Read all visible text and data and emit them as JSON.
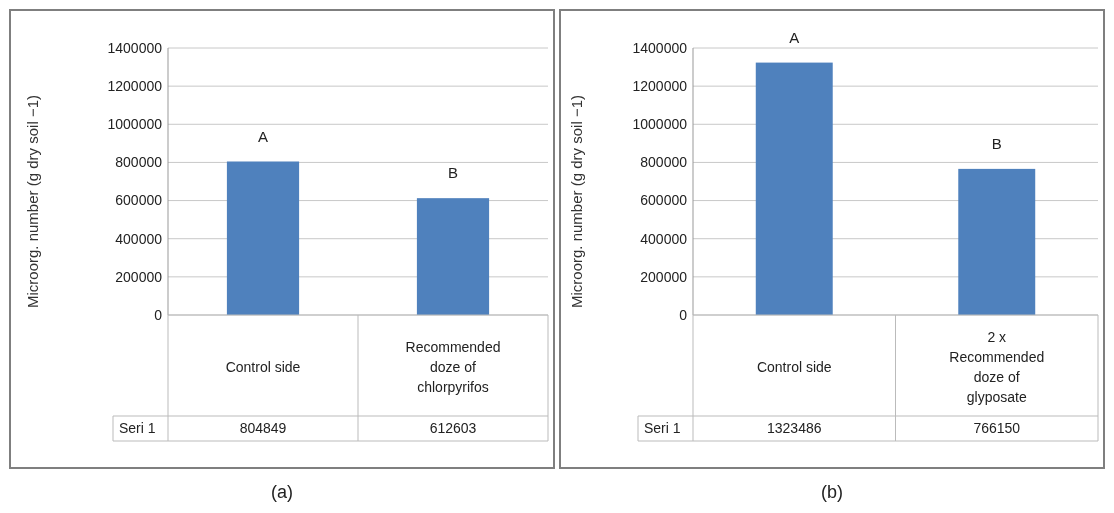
{
  "chart_data": [
    {
      "type": "bar",
      "ylabel": "Microorg. number (g dry soil −1)",
      "categories": [
        "Control side",
        "Recommended doze of chlorpyrifos"
      ],
      "series": [
        {
          "name": "Seri 1",
          "color": "#4f81bd",
          "values": [
            804849,
            612603
          ]
        }
      ],
      "ylim": [
        0,
        1400000
      ],
      "yticks": [
        0,
        200000,
        400000,
        600000,
        800000,
        1000000,
        1200000,
        1400000
      ],
      "grid": "y",
      "data_labels": true,
      "annotations": [
        {
          "text": "A",
          "x": "Control side",
          "y": 804849
        },
        {
          "text": "B",
          "x": "Recommended doze of chlorpyrifos",
          "y": 612603
        },
        "(a)"
      ]
    },
    {
      "type": "bar",
      "ylabel": "Microorg. number (g dry soil −1)",
      "categories": [
        "Control side",
        "2 x Recommended doze of glyposate"
      ],
      "series": [
        {
          "name": "Seri 1",
          "color": "#4f81bd",
          "values": [
            1323486,
            766150
          ]
        }
      ],
      "ylim": [
        0,
        1400000
      ],
      "yticks": [
        0,
        200000,
        400000,
        600000,
        800000,
        1000000,
        1200000,
        1400000
      ],
      "grid": "y",
      "data_labels": true,
      "annotations": [
        {
          "text": "A",
          "x": "Control side",
          "y": 1323486
        },
        {
          "text": "B",
          "x": "2 x Recommended doze of glyposate",
          "y": 766150
        },
        "(b)"
      ]
    }
  ]
}
